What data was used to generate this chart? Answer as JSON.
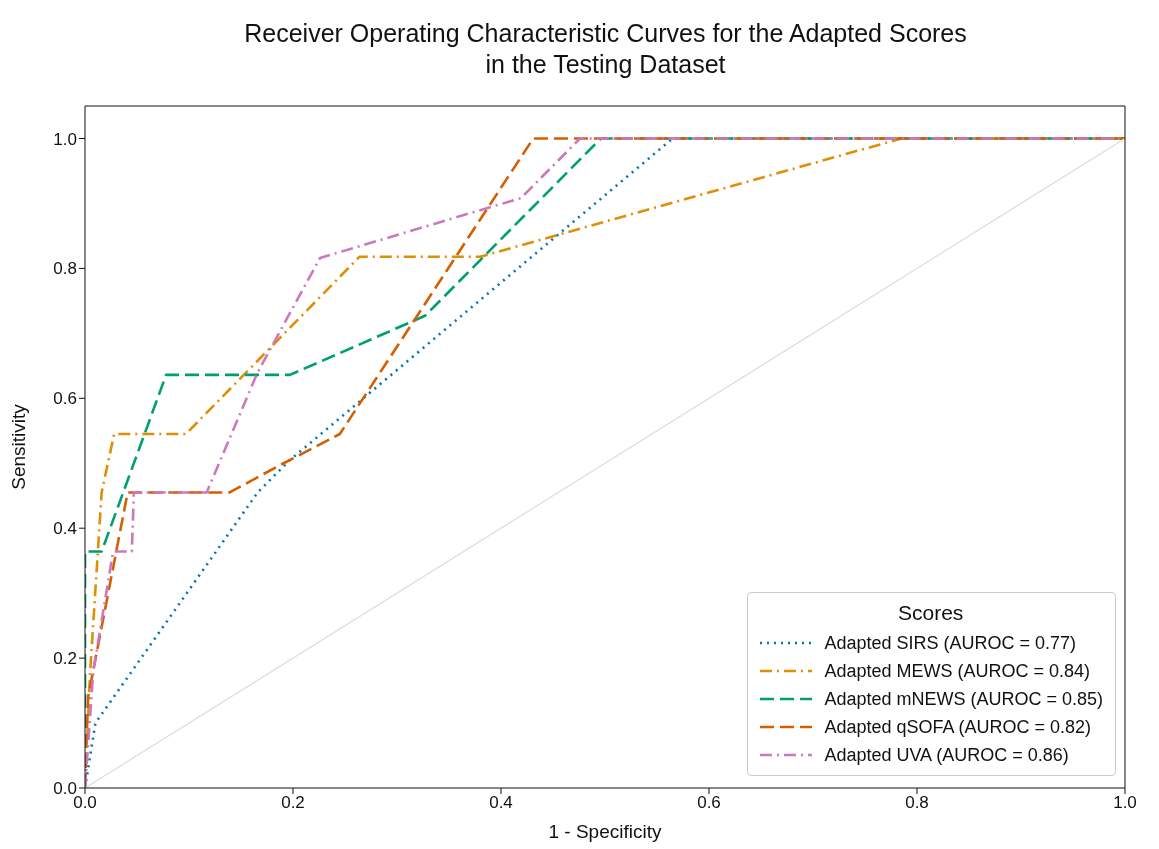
{
  "chart_data": {
    "type": "line",
    "title": "Receiver Operating Characteristic Curves for the Adapted Scores\nin the Testing Dataset",
    "xlabel": "1 - Specificity",
    "ylabel": "Sensitivity",
    "legend_title": "Scores",
    "legend": "bottom right",
    "marker": "none",
    "xlim": [
      0,
      1
    ],
    "ylim": [
      0,
      1.05
    ],
    "xticks": [
      {
        "value": 0,
        "label": "0.0"
      },
      {
        "value": 0.2,
        "label": "0.2"
      },
      {
        "value": 0.4,
        "label": "0.4"
      },
      {
        "value": 0.6,
        "label": "0.6"
      },
      {
        "value": 0.8,
        "label": "0.8"
      },
      {
        "value": 1,
        "label": "1.0"
      }
    ],
    "yticks": [
      {
        "value": 0,
        "label": "0.0"
      },
      {
        "value": 0.2,
        "label": "0.2"
      },
      {
        "value": 0.4,
        "label": "0.4"
      },
      {
        "value": 0.6,
        "label": "0.6"
      },
      {
        "value": 0.8,
        "label": "0.8"
      },
      {
        "value": 1,
        "label": "1.0"
      }
    ],
    "series": [
      {
        "name": "Adapted SIRS (AUROC = 0.77)",
        "color": "#0173b2",
        "line_style": "dotted",
        "x": [
          0,
          0.01,
          0.166,
          0.197,
          0.565,
          1
        ],
        "values": [
          0,
          0.1,
          0.455,
          0.505,
          1,
          1
        ]
      },
      {
        "name": "Adapted MEWS (AUROC = 0.84)",
        "color": "#de8f05",
        "line_style": "dashdot",
        "x": [
          0,
          0.005,
          0.016,
          0.028,
          0.097,
          0.264,
          0.38,
          0.785,
          1
        ],
        "values": [
          0,
          0.18,
          0.455,
          0.545,
          0.545,
          0.818,
          0.818,
          1,
          1
        ]
      },
      {
        "name": "Adapted mNEWS (AUROC = 0.85)",
        "color": "#029e73",
        "line_style": "dashed",
        "x": [
          0,
          0,
          0.016,
          0.078,
          0.197,
          0.327,
          0.496,
          1
        ],
        "values": [
          0,
          0.364,
          0.364,
          0.636,
          0.636,
          0.727,
          1,
          1
        ]
      },
      {
        "name": "Adapted qSOFA (AUROC = 0.82)",
        "color": "#d55e00",
        "line_style": "dashed",
        "x": [
          0,
          0.003,
          0.041,
          0.139,
          0.185,
          0.245,
          0.431,
          1
        ],
        "values": [
          0,
          0.14,
          0.455,
          0.455,
          0.495,
          0.545,
          1,
          1
        ]
      },
      {
        "name": "Adapted UVA (AUROC = 0.86)",
        "color": "#cc78bc",
        "line_style": "dashdot",
        "x": [
          0,
          0.008,
          0.027,
          0.045,
          0.047,
          0.117,
          0.166,
          0.226,
          0.387,
          0.419,
          0.476,
          1
        ],
        "values": [
          0,
          0.18,
          0.364,
          0.364,
          0.455,
          0.455,
          0.64,
          0.816,
          0.893,
          0.908,
          1,
          1
        ]
      },
      {
        "color": "#dddddd",
        "line_style": "solid",
        "x": [
          0,
          1
        ],
        "values": [
          0,
          1
        ]
      }
    ]
  }
}
